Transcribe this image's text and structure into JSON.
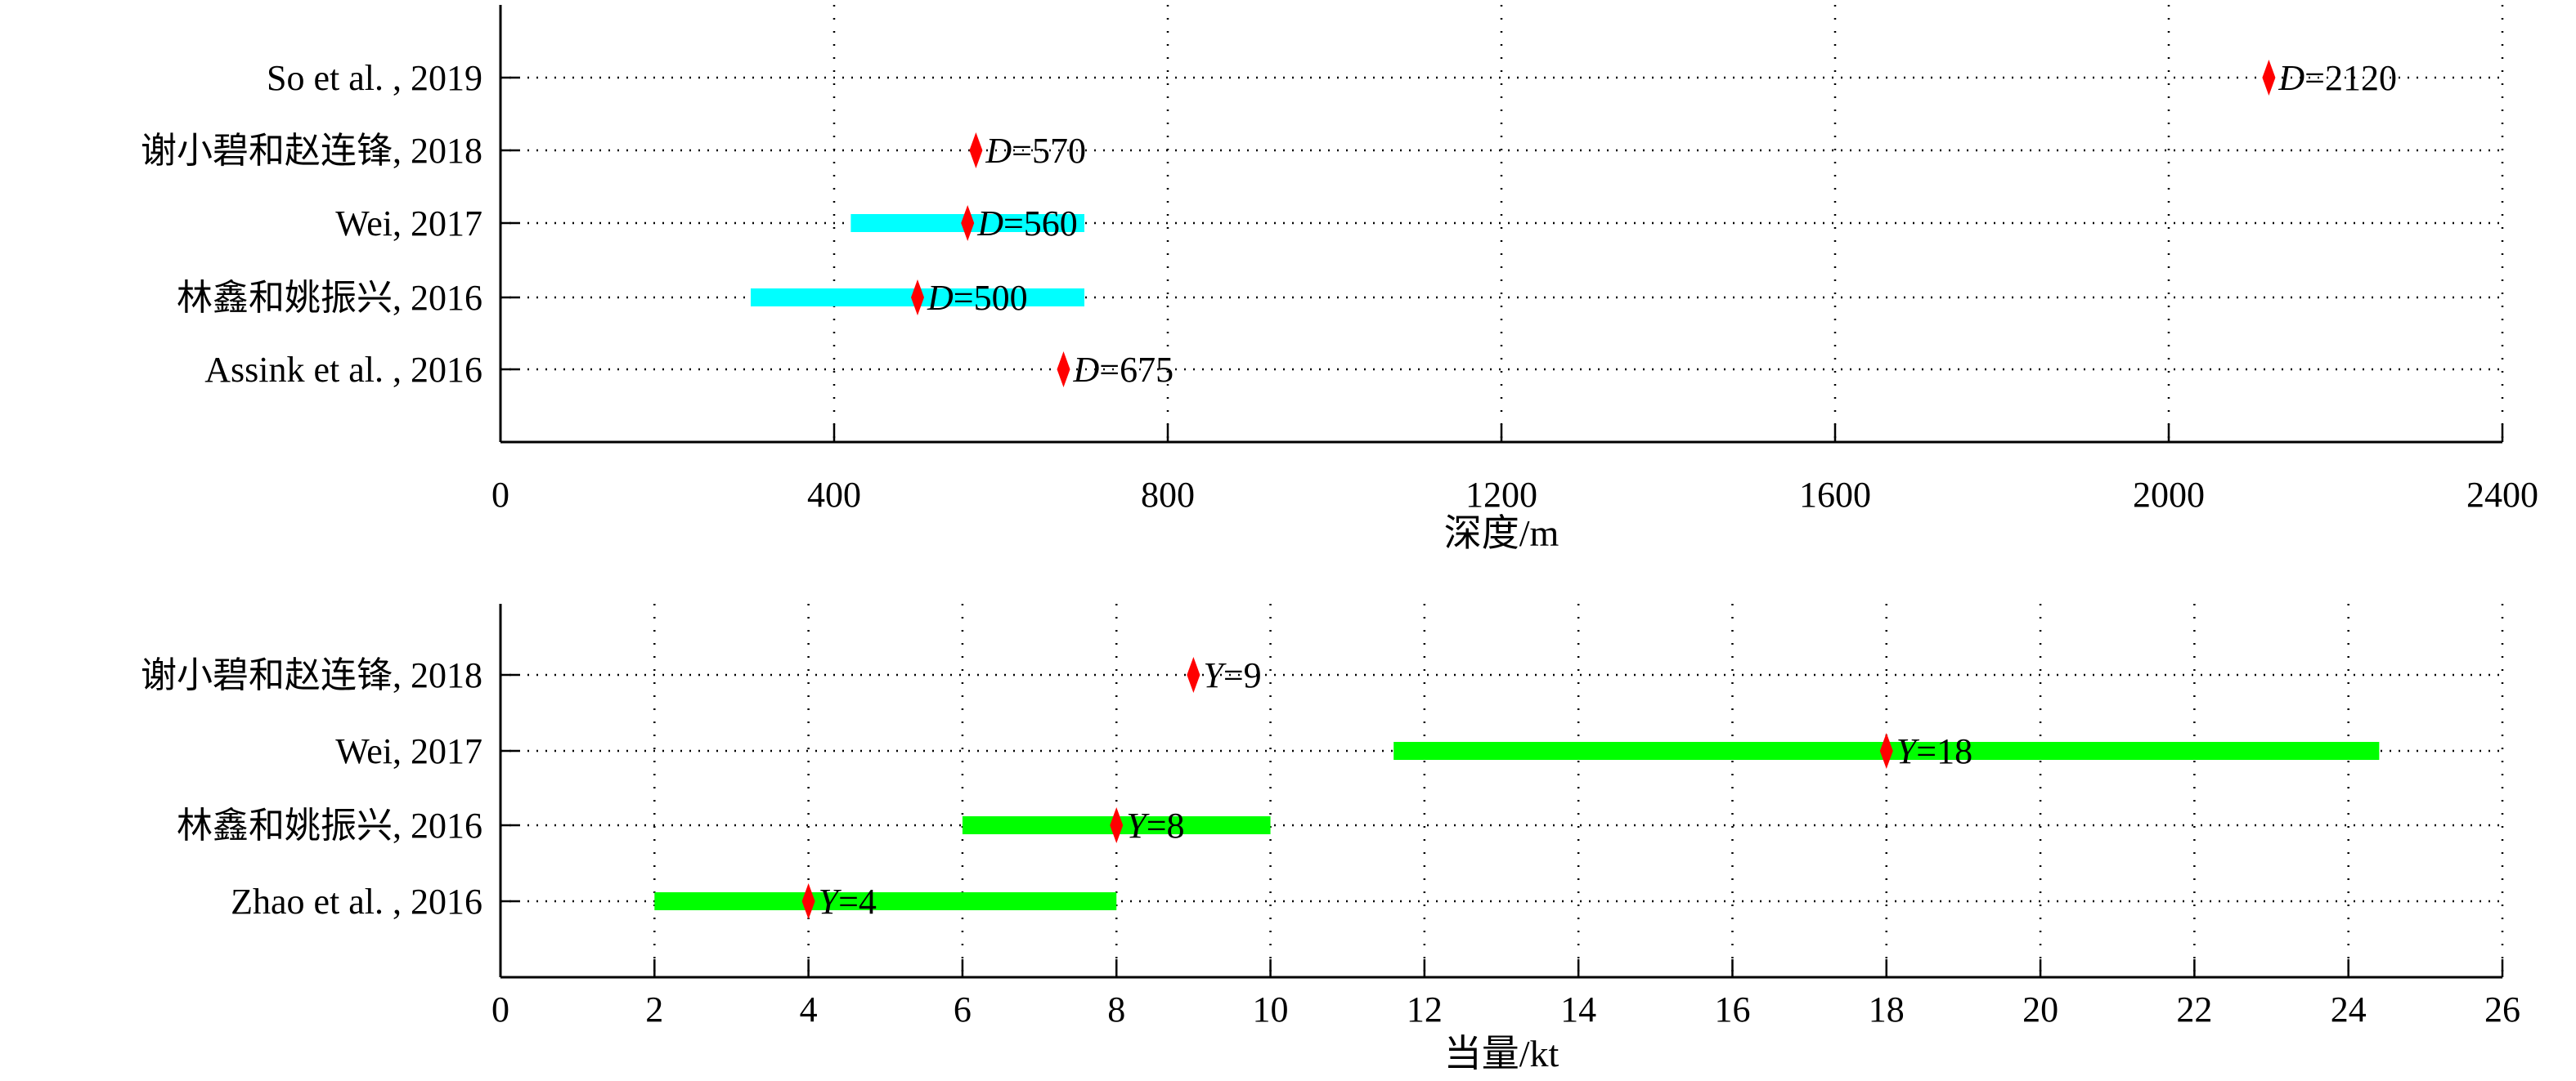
{
  "chart_data": [
    {
      "type": "range-bar",
      "xlabel": "深度/m",
      "xlim": [
        0,
        2400
      ],
      "xticks": [
        0,
        400,
        800,
        1200,
        1600,
        2000,
        2400
      ],
      "grid": true,
      "bar_color": "#00ffff",
      "marker_color": "#ff0000",
      "var": "D",
      "rows": [
        {
          "label": "So et al. , 2019",
          "value": 2120,
          "range": null,
          "annotation": "=2120"
        },
        {
          "label": "谢小碧和赵连锋, 2018",
          "value": 570,
          "range": null,
          "annotation": "=570"
        },
        {
          "label": "Wei, 2017",
          "value": 560,
          "range": [
            420,
            700
          ],
          "annotation": "=560"
        },
        {
          "label": "林鑫和姚振兴, 2016",
          "value": 500,
          "range": [
            300,
            700
          ],
          "annotation": "=500"
        },
        {
          "label": "Assink et al. , 2016",
          "value": 675,
          "range": null,
          "annotation": "=675"
        }
      ]
    },
    {
      "type": "range-bar",
      "xlabel": "当量/kt",
      "xlim": [
        0,
        26
      ],
      "xticks": [
        0,
        2,
        4,
        6,
        8,
        10,
        12,
        14,
        16,
        18,
        20,
        22,
        24,
        26
      ],
      "grid": true,
      "bar_color": "#00ff00",
      "marker_color": "#ff0000",
      "var": "Y",
      "rows": [
        {
          "label": "谢小碧和赵连锋, 2018",
          "value": 9,
          "range": null,
          "annotation": "=9"
        },
        {
          "label": "Wei, 2017",
          "value": 18,
          "range": [
            11.6,
            24.4
          ],
          "annotation": "=18"
        },
        {
          "label": "林鑫和姚振兴, 2016",
          "value": 8,
          "range": [
            6,
            10
          ],
          "annotation": "=8"
        },
        {
          "label": "Zhao et al. , 2016",
          "value": 4,
          "range": [
            2,
            8
          ],
          "annotation": "=4"
        }
      ]
    }
  ]
}
